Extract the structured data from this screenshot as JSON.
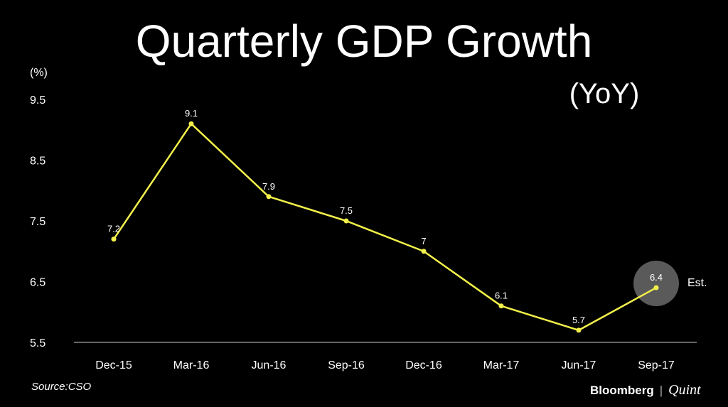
{
  "chart_data": {
    "type": "line",
    "title": "Quarterly GDP Growth",
    "subtitle": "(YoY)",
    "ylabel": "(%)",
    "xlabel": "",
    "categories": [
      "Dec-15",
      "Mar-16",
      "Jun-16",
      "Sep-16",
      "Dec-16",
      "Mar-17",
      "Jun-17",
      "Sep-17"
    ],
    "series": [
      {
        "values": [
          7.2,
          9.1,
          7.9,
          7.5,
          7,
          6.1,
          5.7,
          6.4
        ],
        "value_labels": [
          "7.2",
          "9.1",
          "7.9",
          "7.5",
          "7",
          "6.1",
          "5.7",
          "6.4"
        ]
      }
    ],
    "ylim": [
      5.5,
      9.5
    ],
    "yticks": [
      "5.5",
      "6.5",
      "7.5",
      "8.5",
      "9.5"
    ],
    "annotation": {
      "category": "Sep-17",
      "text": "Est."
    },
    "grid": false,
    "colors": {
      "line": "#f2f04a",
      "marker": "#f2f04a",
      "highlight": "#5a5a5a",
      "axis": "#888888",
      "background": "#000000"
    }
  },
  "source": "Source:CSO",
  "brand": {
    "name": "Bloomberg",
    "divider": "|",
    "sub": "Quint"
  }
}
